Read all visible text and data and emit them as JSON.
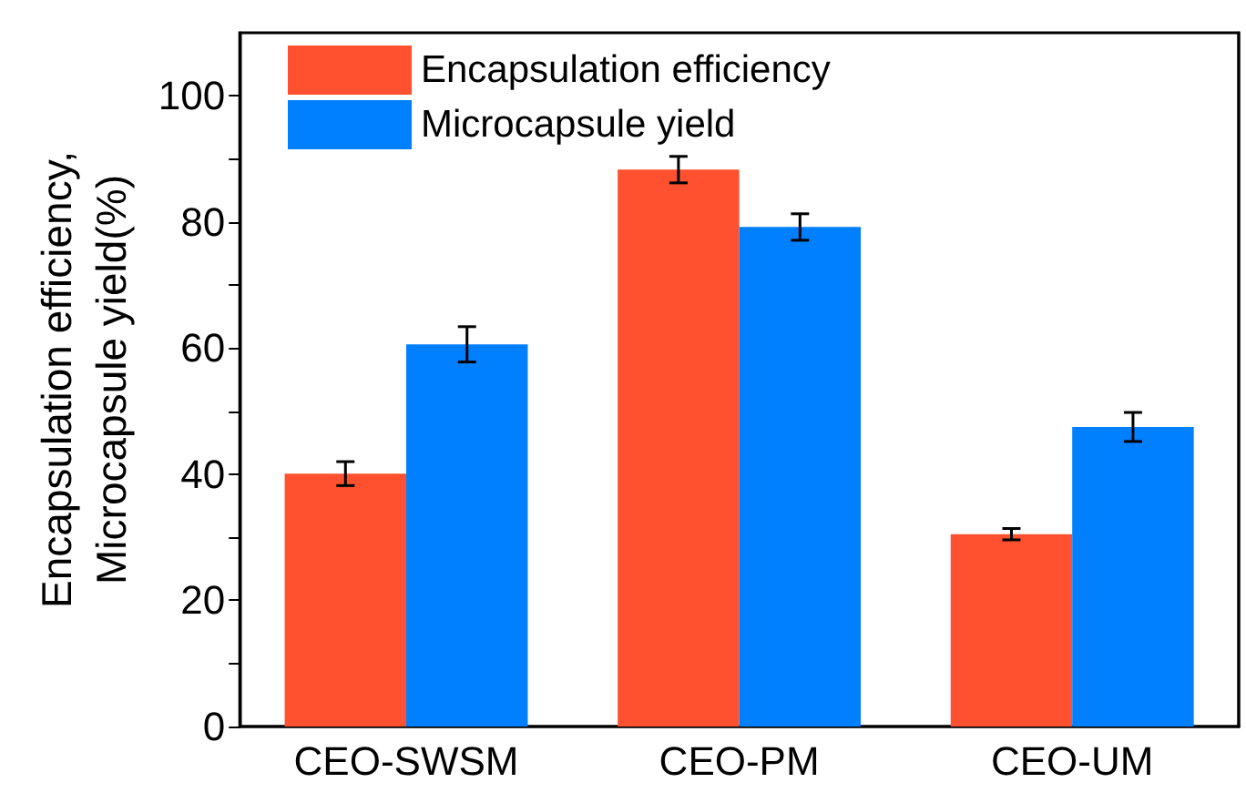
{
  "chart_data": {
    "type": "bar",
    "ylabel": "Encapsulation efficiency,\nMicrocapsule yield(%)",
    "categories": [
      "CEO-SWSM",
      "CEO-PM",
      "CEO-UM"
    ],
    "series": [
      {
        "name": "Encapsulation efficiency",
        "color": "#ff5030",
        "values": [
          40.1,
          88.3,
          30.5
        ],
        "errors": [
          1.9,
          2.1,
          0.9
        ]
      },
      {
        "name": "Microcapsule yield",
        "color": "#0080ff",
        "values": [
          60.6,
          79.2,
          47.5
        ],
        "errors": [
          2.8,
          2.1,
          2.3
        ]
      }
    ],
    "ylim": [
      0,
      110
    ],
    "yticks": [
      0,
      {
        "value": 10,
        "label": null
      },
      20,
      {
        "value": 30,
        "label": null
      },
      40,
      {
        "value": 50,
        "label": null
      },
      60,
      {
        "value": 70,
        "label": null
      },
      80,
      {
        "value": 90,
        "label": null
      },
      100
    ],
    "grid": false,
    "legend": "top left"
  }
}
